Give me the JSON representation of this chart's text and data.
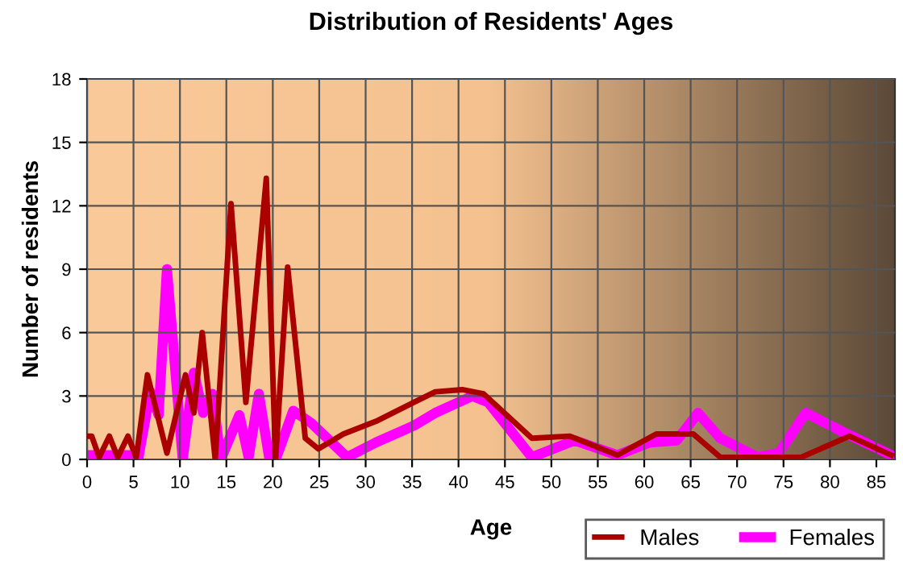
{
  "chart_data": {
    "type": "line",
    "title": "Distribution of Residents' Ages",
    "xlabel": "Age",
    "ylabel": "Number of residents",
    "xlim": [
      0,
      87
    ],
    "xticks": [
      0,
      5,
      10,
      15,
      20,
      25,
      30,
      35,
      40,
      45,
      50,
      55,
      60,
      65,
      70,
      75,
      80,
      85
    ],
    "ylim": [
      0,
      18
    ],
    "yticks": [
      0,
      3,
      6,
      9,
      12,
      15,
      18
    ],
    "grid": true,
    "legend": "bottom right",
    "line_style": "solid",
    "series": [
      {
        "name": "Males",
        "color": "#aa0000",
        "x": [
          0,
          0.5,
          1.3,
          2.4,
          3.3,
          4.4,
          5.3,
          6.5,
          8.6,
          10.6,
          11.5,
          12.4,
          13.8,
          15.5,
          17.1,
          19.3,
          20.3,
          21.6,
          23.5,
          24.9,
          27.6,
          31.1,
          35.2,
          37.5,
          40.4,
          42.7,
          47.9,
          52,
          57.1,
          61.3,
          65.3,
          68.2,
          76.9,
          82.1,
          86.6
        ],
        "values": [
          1.1,
          1.1,
          0.1,
          1.1,
          0.1,
          1.1,
          0.1,
          4.0,
          0.3,
          4.0,
          2.2,
          6.0,
          0,
          12.1,
          2.7,
          13.3,
          0,
          9.1,
          1.0,
          0.5,
          1.2,
          1.8,
          2.7,
          3.2,
          3.3,
          3.1,
          1.0,
          1.1,
          0.2,
          1.2,
          1.2,
          0.1,
          0.1,
          1.1,
          0.2
        ]
      },
      {
        "name": "Females",
        "color": "#ff00ff",
        "x": [
          0,
          5,
          5.5,
          6.8,
          7.7,
          8.6,
          10.3,
          11.5,
          12.5,
          13.5,
          14.4,
          16.4,
          17.4,
          18.5,
          19.6,
          20.4,
          22.2,
          24.2,
          28,
          31.1,
          35.2,
          37.5,
          41.5,
          43.2,
          47.9,
          52.5,
          57.1,
          60.6,
          63.5,
          65.8,
          68.2,
          72.2,
          74.5,
          77.4,
          81.4,
          86.6
        ],
        "values": [
          0.2,
          0.2,
          0,
          3.2,
          2.1,
          9.0,
          0,
          4.1,
          2.2,
          3.1,
          0,
          2.1,
          0.1,
          3.1,
          0.1,
          0.1,
          2.3,
          1.7,
          0.1,
          0.8,
          1.6,
          2.2,
          3.0,
          2.7,
          0.1,
          0.9,
          0.2,
          0.8,
          0.9,
          2.2,
          1.0,
          0.1,
          0.3,
          2.2,
          1.3,
          0.2
        ]
      }
    ]
  }
}
